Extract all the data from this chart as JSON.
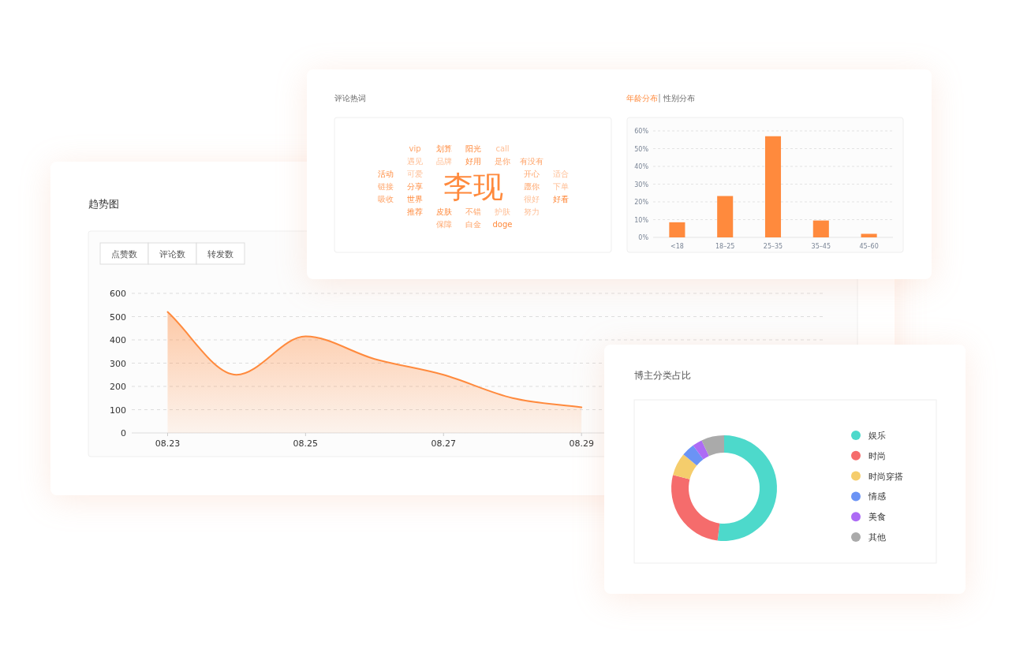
{
  "chart_data": [
    {
      "type": "other",
      "title": "评论热词",
      "annotations": [
        "李现",
        "好用",
        "不错",
        "品牌",
        "皮肤",
        "是你",
        "护肤",
        "分享",
        "愿你",
        "可爱",
        "世界",
        "开心",
        "很好",
        "阳光",
        "白金",
        "遇见",
        "推荐",
        "有没有",
        "努力",
        "划算",
        "保障",
        "call",
        "doge",
        "链接",
        "下单",
        "活动",
        "吸收",
        "适合",
        "好看",
        "vip"
      ]
    },
    {
      "type": "bar",
      "title": "年龄分布",
      "annotations": [
        "性别分布"
      ],
      "categories": [
        "<18",
        "18–25",
        "25–35",
        "35–45",
        "45–60"
      ],
      "values": [
        8.5,
        23.3,
        57,
        9.5,
        2
      ],
      "color": "#ff8a3d",
      "ylim": [
        0,
        60
      ],
      "yticks": [
        {
          "value": 0,
          "label": "0%"
        },
        {
          "value": 10,
          "label": "10%"
        },
        {
          "value": 20,
          "label": "20%"
        },
        {
          "value": 30,
          "label": "30%"
        },
        {
          "value": 40,
          "label": "40%"
        },
        {
          "value": 50,
          "label": "50%"
        },
        {
          "value": 60,
          "label": "60%"
        }
      ],
      "grid": "y"
    },
    {
      "type": "area",
      "title": "趋势图",
      "annotations": [
        "点赞数",
        "评论数",
        "转发数"
      ],
      "categories": [
        "08.23",
        null,
        "08.25",
        null,
        "08.27",
        null,
        "08.29",
        null,
        null,
        null
      ],
      "values": [
        520,
        250,
        415,
        318,
        250,
        150,
        110,
        null,
        null,
        null
      ],
      "color": "#ff8a3d",
      "ylim": [
        0,
        600
      ],
      "yticks": [
        0,
        100,
        200,
        300,
        400,
        500,
        600
      ],
      "grid": "y"
    },
    {
      "type": "donut",
      "title": "博主分类占比",
      "categories": [
        "娱乐",
        "时尚",
        "时尚穿搭",
        "情感",
        "美食",
        "其他"
      ],
      "values": [
        52,
        27,
        7,
        4,
        3,
        7
      ],
      "colors": [
        "#4dd9cb",
        "#f56c6c",
        "#f5cd6c",
        "#6b93f5",
        "#ad6bf5",
        "#aaaaaa"
      ],
      "legend": "right"
    }
  ]
}
